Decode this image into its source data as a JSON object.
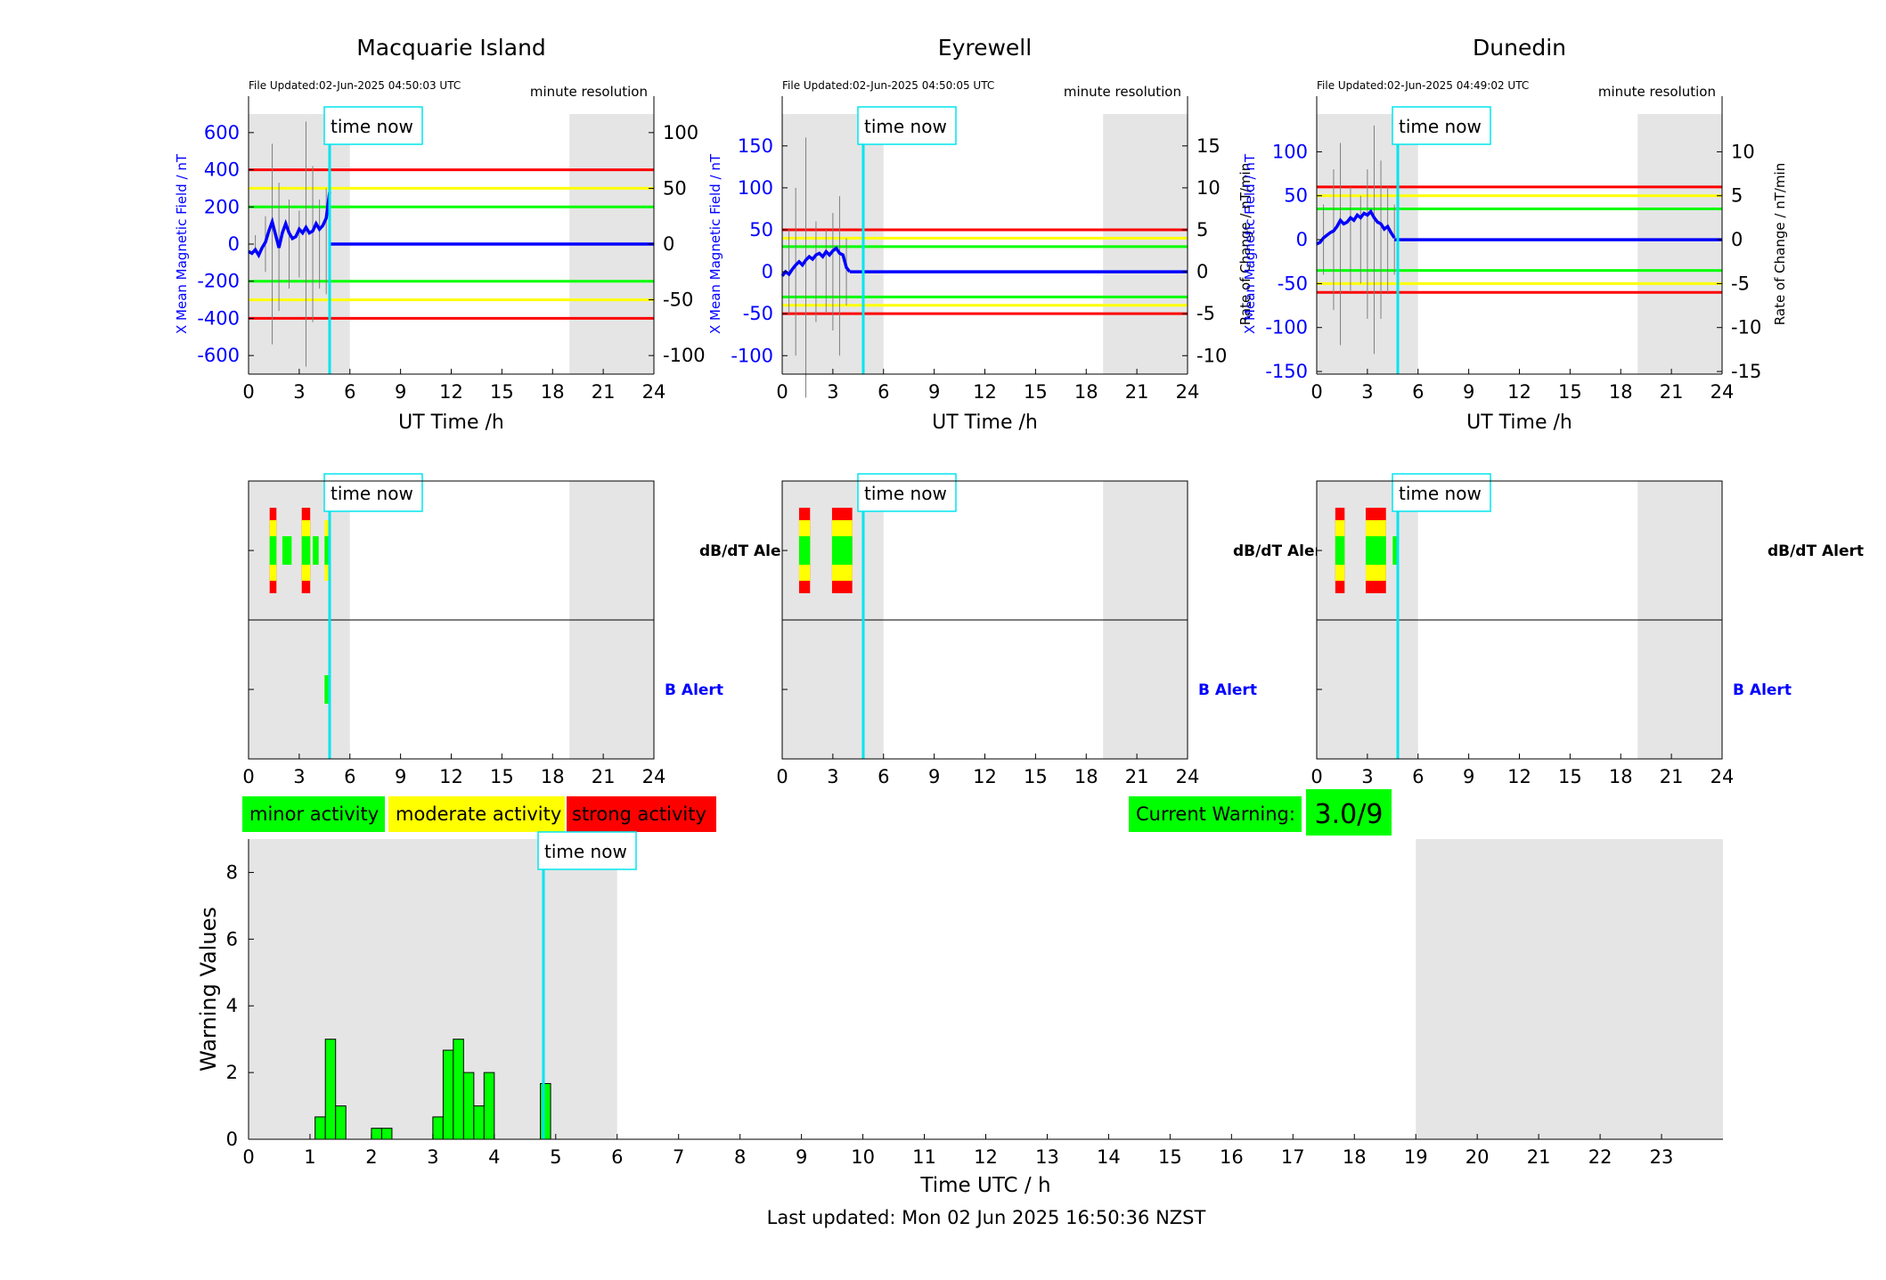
{
  "footer": {
    "last_updated": "Last updated: Mon 02 Jun 2025 16:50:36 NZST"
  },
  "legend": {
    "minor": "minor activity",
    "moderate": "moderate activity",
    "strong": "strong activity",
    "colors": {
      "minor": "#00ff00",
      "moderate": "#ffff00",
      "strong": "#ff0000"
    }
  },
  "current_warning": {
    "label": "Current Warning:",
    "value": "3.0/9"
  },
  "time_now_label": "time now",
  "chart_data": [
    {
      "type": "line",
      "title": "Macquarie Island",
      "file_updated": "File Updated:02-Jun-2025 04:50:03 UTC",
      "resolution": "minute resolution",
      "xlabel": "UT Time /h",
      "ylabel": "X Mean Magnetic Field / nT",
      "ylabel_right": "",
      "xlim": [
        0,
        24
      ],
      "ylim": [
        -700,
        700
      ],
      "ylim_right": [
        -116.67,
        116.67
      ],
      "xticks": [
        0,
        3,
        6,
        9,
        12,
        15,
        18,
        21,
        24
      ],
      "yticks": [
        -600,
        -400,
        -200,
        0,
        200,
        400,
        600
      ],
      "yticks_right": [
        -100,
        -50,
        0,
        50,
        100
      ],
      "time_now": 4.8,
      "shaded": [
        [
          0,
          6
        ],
        [
          19,
          24
        ]
      ],
      "thresholds": {
        "red": 400,
        "yellow": 300,
        "green": 200
      },
      "series": [
        {
          "x": [
            0,
            0.2,
            0.4,
            0.6,
            0.8,
            1.0,
            1.2,
            1.4,
            1.6,
            1.8,
            2.0,
            2.2,
            2.4,
            2.6,
            2.8,
            3.0,
            3.2,
            3.4,
            3.6,
            3.8,
            4.0,
            4.2,
            4.4,
            4.6,
            4.8
          ],
          "values": [
            -40,
            -50,
            -30,
            -60,
            -20,
            10,
            70,
            120,
            50,
            -20,
            60,
            110,
            60,
            30,
            40,
            80,
            60,
            90,
            60,
            70,
            110,
            80,
            100,
            140,
            280
          ]
        },
        {
          "x": [
            4.8,
            24
          ],
          "values": [
            0,
            0
          ]
        }
      ],
      "rate_envelope": {
        "x": [
          0.4,
          1.0,
          1.4,
          1.8,
          2.4,
          3.0,
          3.4,
          3.8,
          4.2,
          4.6
        ],
        "max": [
          8,
          25,
          90,
          55,
          40,
          30,
          110,
          70,
          40,
          50
        ],
        "min": [
          -8,
          -25,
          -90,
          -60,
          -40,
          -30,
          -110,
          -70,
          -40,
          -45
        ]
      }
    },
    {
      "type": "line",
      "title": "Eyrewell",
      "file_updated": "File Updated:02-Jun-2025 04:50:05 UTC",
      "resolution": "minute resolution",
      "xlabel": "UT Time /h",
      "ylabel": "X Mean Magnetic Field / nT",
      "ylabel_right": "Rate of Change / nT/min",
      "xlim": [
        0,
        24
      ],
      "ylim": [
        -122,
        188
      ],
      "ylim_right": [
        -12.2,
        18.8
      ],
      "xticks": [
        0,
        3,
        6,
        9,
        12,
        15,
        18,
        21,
        24
      ],
      "yticks": [
        -100,
        -50,
        0,
        50,
        100,
        150
      ],
      "yticks_right": [
        -10,
        -5,
        0,
        5,
        10,
        15
      ],
      "time_now": 4.8,
      "shaded": [
        [
          0,
          6
        ],
        [
          19,
          24
        ]
      ],
      "thresholds": {
        "red": 50,
        "yellow": 40,
        "green": 30
      },
      "series": [
        {
          "x": [
            0,
            0.2,
            0.4,
            0.6,
            0.8,
            1.0,
            1.2,
            1.4,
            1.6,
            1.8,
            2.0,
            2.2,
            2.4,
            2.6,
            2.8,
            3.0,
            3.2,
            3.4,
            3.6,
            3.8,
            4.0
          ],
          "values": [
            -5,
            0,
            -3,
            3,
            8,
            12,
            8,
            14,
            18,
            15,
            20,
            22,
            18,
            24,
            20,
            25,
            28,
            22,
            20,
            5,
            0
          ]
        },
        {
          "x": [
            4.0,
            24
          ],
          "values": [
            0,
            0
          ]
        }
      ],
      "rate_envelope": {
        "x": [
          0.4,
          0.8,
          1.4,
          2.0,
          2.6,
          3.0,
          3.4,
          3.8
        ],
        "max": [
          5,
          10,
          16,
          6,
          5,
          7,
          9,
          4
        ],
        "min": [
          -5,
          -10,
          -15,
          -6,
          -5,
          -7,
          -10,
          -4
        ]
      }
    },
    {
      "type": "line",
      "title": "Dunedin",
      "file_updated": "File Updated:02-Jun-2025 04:49:02 UTC",
      "resolution": "minute resolution",
      "xlabel": "UT Time /h",
      "ylabel": "X Mean Magnetic Field / nT",
      "ylabel_right": "Rate of Change / nT/min",
      "xlim": [
        0,
        24
      ],
      "ylim": [
        -153,
        143
      ],
      "ylim_right": [
        -15.3,
        14.3
      ],
      "xticks": [
        0,
        3,
        6,
        9,
        12,
        15,
        18,
        21,
        24
      ],
      "yticks": [
        -150,
        -100,
        -50,
        0,
        50,
        100
      ],
      "yticks_right": [
        -15,
        -10,
        -5,
        0,
        5,
        10
      ],
      "time_now": 4.8,
      "shaded": [
        [
          0,
          6
        ],
        [
          19,
          24
        ]
      ],
      "thresholds": {
        "red": 60,
        "yellow": 50,
        "green": 35
      },
      "series": [
        {
          "x": [
            0,
            0.2,
            0.4,
            0.6,
            0.8,
            1.0,
            1.2,
            1.4,
            1.6,
            1.8,
            2.0,
            2.2,
            2.4,
            2.6,
            2.8,
            3.0,
            3.2,
            3.4,
            3.6,
            3.8,
            4.0,
            4.2,
            4.4,
            4.6
          ],
          "values": [
            -5,
            -3,
            2,
            5,
            8,
            10,
            15,
            22,
            18,
            20,
            25,
            22,
            28,
            25,
            30,
            28,
            32,
            25,
            20,
            18,
            12,
            15,
            8,
            2
          ]
        },
        {
          "x": [
            4.6,
            24
          ],
          "values": [
            0,
            0
          ]
        }
      ],
      "rate_envelope": {
        "x": [
          0.4,
          1.0,
          1.4,
          2.0,
          2.6,
          3.0,
          3.4,
          3.8,
          4.2,
          4.6
        ],
        "max": [
          4,
          8,
          11,
          6,
          5,
          8,
          13,
          9,
          6,
          4
        ],
        "min": [
          -4,
          -8,
          -12,
          -6,
          -5,
          -9,
          -13,
          -9,
          -6,
          -4
        ]
      }
    },
    {
      "type": "alert_strip",
      "station": "Macquarie Island",
      "top_label": "dB/dT Alert",
      "bottom_label": "B Alert",
      "xlim": [
        0,
        24
      ],
      "xticks": [
        0,
        3,
        6,
        9,
        12,
        15,
        18,
        21,
        24
      ],
      "time_now": 4.8,
      "shaded": [
        [
          0,
          6
        ],
        [
          19,
          24
        ]
      ],
      "dbdt": [
        {
          "x0": 1.25,
          "x1": 1.65,
          "level": 3
        },
        {
          "x0": 2.0,
          "x1": 2.55,
          "level": 1
        },
        {
          "x0": 3.15,
          "x1": 3.65,
          "level": 3
        },
        {
          "x0": 3.8,
          "x1": 4.15,
          "level": 1
        },
        {
          "x0": 4.5,
          "x1": 4.8,
          "level": 2
        }
      ],
      "b": [
        {
          "x0": 4.5,
          "x1": 4.8,
          "level": 1
        }
      ]
    },
    {
      "type": "alert_strip",
      "station": "Eyrewell",
      "top_label": "dB/dT Alert",
      "bottom_label": "B Alert",
      "xlim": [
        0,
        24
      ],
      "xticks": [
        0,
        3,
        6,
        9,
        12,
        15,
        18,
        21,
        24
      ],
      "time_now": 4.8,
      "shaded": [
        [
          0,
          6
        ],
        [
          19,
          24
        ]
      ],
      "dbdt": [
        {
          "x0": 1.0,
          "x1": 1.65,
          "level": 3
        },
        {
          "x0": 2.95,
          "x1": 4.15,
          "level": 3
        }
      ],
      "b": []
    },
    {
      "type": "alert_strip",
      "station": "Dunedin",
      "top_label": "dB/dT Alert",
      "bottom_label": "B Alert",
      "xlim": [
        0,
        24
      ],
      "xticks": [
        0,
        3,
        6,
        9,
        12,
        15,
        18,
        21,
        24
      ],
      "time_now": 4.8,
      "shaded": [
        [
          0,
          6
        ],
        [
          19,
          24
        ]
      ],
      "dbdt": [
        {
          "x0": 1.1,
          "x1": 1.65,
          "level": 3
        },
        {
          "x0": 2.9,
          "x1": 4.1,
          "level": 3
        },
        {
          "x0": 4.5,
          "x1": 4.8,
          "level": 1
        }
      ],
      "b": []
    },
    {
      "type": "bar",
      "xlabel": "Time UTC / h",
      "ylabel": "Warning Values",
      "xlim": [
        0,
        24
      ],
      "ylim": [
        0,
        9
      ],
      "xticks": [
        0,
        1,
        2,
        3,
        4,
        5,
        6,
        7,
        8,
        9,
        10,
        11,
        12,
        13,
        14,
        15,
        16,
        17,
        18,
        19,
        20,
        21,
        22,
        23
      ],
      "yticks": [
        0,
        2,
        4,
        6,
        8
      ],
      "time_now": 4.8,
      "shaded": [
        [
          0,
          6
        ],
        [
          19,
          24
        ]
      ],
      "bar_width": 0.1667,
      "x": [
        1.083,
        1.25,
        1.417,
        2.0,
        2.167,
        3.0,
        3.167,
        3.333,
        3.5,
        3.667,
        3.833,
        4.75
      ],
      "values": [
        0.67,
        3.0,
        1.0,
        0.33,
        0.33,
        0.67,
        2.67,
        3.0,
        2.0,
        1.0,
        2.0,
        1.67
      ]
    }
  ]
}
